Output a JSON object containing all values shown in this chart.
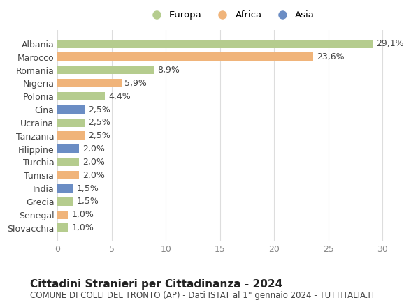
{
  "countries": [
    "Albania",
    "Marocco",
    "Romania",
    "Nigeria",
    "Polonia",
    "Cina",
    "Ucraina",
    "Tanzania",
    "Filippine",
    "Turchia",
    "Tunisia",
    "India",
    "Grecia",
    "Senegal",
    "Slovacchia"
  ],
  "values": [
    29.1,
    23.6,
    8.9,
    5.9,
    4.4,
    2.5,
    2.5,
    2.5,
    2.0,
    2.0,
    2.0,
    1.5,
    1.5,
    1.0,
    1.0
  ],
  "labels": [
    "29,1%",
    "23,6%",
    "8,9%",
    "5,9%",
    "4,4%",
    "2,5%",
    "2,5%",
    "2,5%",
    "2,0%",
    "2,0%",
    "2,0%",
    "1,5%",
    "1,5%",
    "1,0%",
    "1,0%"
  ],
  "continents": [
    "Europa",
    "Africa",
    "Europa",
    "Africa",
    "Europa",
    "Asia",
    "Europa",
    "Africa",
    "Asia",
    "Europa",
    "Africa",
    "Asia",
    "Europa",
    "Africa",
    "Europa"
  ],
  "colors": {
    "Europa": "#b5cc8e",
    "Africa": "#f0b47a",
    "Asia": "#6b8dc4"
  },
  "title": "Cittadini Stranieri per Cittadinanza - 2024",
  "subtitle": "COMUNE DI COLLI DEL TRONTO (AP) - Dati ISTAT al 1° gennaio 2024 - TUTTITALIA.IT",
  "xlim": [
    0,
    32
  ],
  "xticks": [
    0,
    5,
    10,
    15,
    20,
    25,
    30
  ],
  "background_color": "#ffffff",
  "grid_color": "#dddddd",
  "bar_height": 0.65,
  "label_fontsize": 9,
  "tick_fontsize": 9,
  "title_fontsize": 11,
  "subtitle_fontsize": 8.5
}
